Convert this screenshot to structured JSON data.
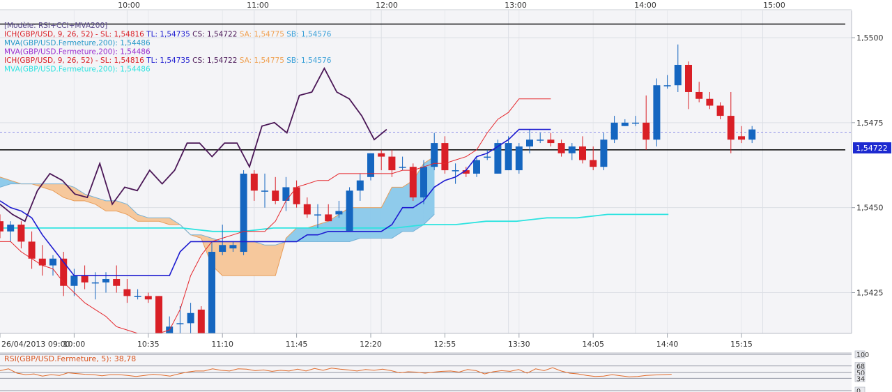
{
  "colors": {
    "panel_bg": "#f4f4f7",
    "frame": "#b9bdc6",
    "grid": "#dcdfe5",
    "bull": "#1566c0",
    "bear": "#d91f26",
    "tenkan": "#e5262b",
    "kijun": "#1d1bd0",
    "mva200": "#2de3e0",
    "cloud_bear": "#f6c89c",
    "cloud_bull": "#8fcbeb",
    "cloud_edge_a": "#e89d5a",
    "cloud_edge_b": "#75b1d6",
    "chikou": "#4a1656",
    "rsi": "#e06a2a",
    "marker": "#f2a33a"
  },
  "top_axis_labels": [
    "10:00",
    "11:00",
    "12:00",
    "13:00",
    "14:00",
    "15:00"
  ],
  "legend": [
    {
      "text": "[Modèle: RSI+CCI+MVA200]",
      "color": "#5a4a8c"
    },
    {
      "parts": [
        {
          "text": "ICH(GBP/USD, 9, 26, 52) -  SL: 1,54816  ",
          "color": "#d91f26"
        },
        {
          "text": "TL: 1,54735  ",
          "color": "#1d1bd0"
        },
        {
          "text": "CS: 1,54722  ",
          "color": "#4a1656"
        },
        {
          "text": "SA: 1,54775  ",
          "color": "#f0a050"
        },
        {
          "text": "SB: 1,54576",
          "color": "#3aa0d8"
        }
      ]
    },
    {
      "text": "MVA(GBP/USD.Fermeture,200): 1,54486",
      "color": "#2a9bc9"
    },
    {
      "text": "MVA(GBP/USD.Fermeture,200): 1,54486",
      "color": "#9a2fd0"
    },
    {
      "parts": [
        {
          "text": "ICH(GBP/USD, 9, 26, 52) -  SL: 1,54816  ",
          "color": "#d91f26"
        },
        {
          "text": "TL: 1,54735  ",
          "color": "#1d1bd0"
        },
        {
          "text": "CS: 1,54722  ",
          "color": "#4a1656"
        },
        {
          "text": "SA: 1,54775  ",
          "color": "#f0a050"
        },
        {
          "text": "SB: 1,54576",
          "color": "#3aa0d8"
        }
      ]
    },
    {
      "text": "MVA(GBP/USD.Fermeture,200): 1,54486",
      "color": "#2de3e0"
    }
  ],
  "rsi_label": "RSI(GBP/USD.Fermeture, 5): 38,78",
  "rsi_axis": [
    "100",
    "68",
    "50",
    "34",
    "0"
  ],
  "current_price_label": "1,54722",
  "chart_data": {
    "type": "candlestick",
    "pair": "GBP/USD",
    "timeframe_minutes": 5,
    "x_axis": {
      "ticks": [
        "26/04/2013 09:00",
        "10:00",
        "10:35",
        "11:10",
        "11:45",
        "12:20",
        "12:55",
        "13:30",
        "14:05",
        "14:40",
        "15:15"
      ]
    },
    "y_axis": {
      "ticks": [
        "1,5425",
        "1,5450",
        "1,5475",
        "1,5500"
      ],
      "range": [
        1.5413,
        1.5508
      ]
    },
    "candles": [
      [
        1.5446,
        1.5448,
        1.5441,
        1.5443
      ],
      [
        1.5443,
        1.5446,
        1.544,
        1.5445
      ],
      [
        1.5445,
        1.5446,
        1.5438,
        1.544
      ],
      [
        1.544,
        1.5443,
        1.5432,
        1.5435
      ],
      [
        1.5435,
        1.5439,
        1.543,
        1.5433
      ],
      [
        1.5433,
        1.5436,
        1.543,
        1.5435
      ],
      [
        1.5435,
        1.5437,
        1.5424,
        1.5427
      ],
      [
        1.5427,
        1.5432,
        1.5424,
        1.543
      ],
      [
        1.543,
        1.5433,
        1.5426,
        1.5428
      ],
      [
        1.5428,
        1.5431,
        1.5423,
        1.5428
      ],
      [
        1.5428,
        1.5431,
        1.5425,
        1.5429
      ],
      [
        1.5429,
        1.5433,
        1.5425,
        1.5427
      ],
      [
        1.5426,
        1.5429,
        1.5422,
        1.5424
      ],
      [
        1.5424,
        1.5426,
        1.5423,
        1.5424
      ],
      [
        1.5424,
        1.5425,
        1.5422,
        1.5423
      ],
      [
        1.5424,
        1.5424,
        1.5412,
        1.5413
      ],
      [
        1.5413,
        1.5418,
        1.5411,
        1.5415
      ],
      [
        1.5416,
        1.5421,
        1.5413,
        1.5416
      ],
      [
        1.5416,
        1.5422,
        1.5413,
        1.5419
      ],
      [
        1.542,
        1.5421,
        1.5411,
        1.5413
      ],
      [
        1.5413,
        1.544,
        1.5411,
        1.5437
      ],
      [
        1.5437,
        1.5445,
        1.5436,
        1.5439
      ],
      [
        1.5438,
        1.544,
        1.5437,
        1.5439
      ],
      [
        1.5437,
        1.5461,
        1.5436,
        1.546
      ],
      [
        1.546,
        1.5461,
        1.5452,
        1.5455
      ],
      [
        1.5455,
        1.546,
        1.545,
        1.5455
      ],
      [
        1.5455,
        1.5459,
        1.5451,
        1.5452
      ],
      [
        1.5452,
        1.5459,
        1.5449,
        1.5456
      ],
      [
        1.5456,
        1.5458,
        1.545,
        1.5451
      ],
      [
        1.5451,
        1.5453,
        1.5447,
        1.5448
      ],
      [
        1.5448,
        1.5451,
        1.5444,
        1.5448
      ],
      [
        1.5448,
        1.5451,
        1.5446,
        1.5446
      ],
      [
        1.5448,
        1.5452,
        1.5447,
        1.5449
      ],
      [
        1.5443,
        1.5456,
        1.5443,
        1.5455
      ],
      [
        1.5455,
        1.546,
        1.5452,
        1.5458
      ],
      [
        1.5459,
        1.5466,
        1.5458,
        1.5466
      ],
      [
        1.5466,
        1.5467,
        1.5461,
        1.5465
      ],
      [
        1.5465,
        1.5467,
        1.5459,
        1.5461
      ],
      [
        1.5462,
        1.5465,
        1.5461,
        1.5462
      ],
      [
        1.5462,
        1.5463,
        1.5452,
        1.5453
      ],
      [
        1.5453,
        1.5464,
        1.5451,
        1.5462
      ],
      [
        1.5462,
        1.5472,
        1.5461,
        1.5469
      ],
      [
        1.5469,
        1.5471,
        1.546,
        1.5461
      ],
      [
        1.5461,
        1.5463,
        1.5457,
        1.5461
      ],
      [
        1.5461,
        1.5462,
        1.5459,
        1.546
      ],
      [
        1.546,
        1.5465,
        1.5459,
        1.5464
      ],
      [
        1.5465,
        1.5467,
        1.5464,
        1.5465
      ],
      [
        1.546,
        1.547,
        1.546,
        1.5469
      ],
      [
        1.5461,
        1.5471,
        1.5461,
        1.5469
      ],
      [
        1.5461,
        1.5469,
        1.546,
        1.5468
      ],
      [
        1.5468,
        1.5473,
        1.5466,
        1.547
      ],
      [
        1.547,
        1.5472,
        1.5469,
        1.547
      ],
      [
        1.547,
        1.5472,
        1.5468,
        1.5469
      ],
      [
        1.5469,
        1.547,
        1.5465,
        1.5466
      ],
      [
        1.5466,
        1.5469,
        1.5464,
        1.5468
      ],
      [
        1.5468,
        1.5471,
        1.5463,
        1.5464
      ],
      [
        1.5464,
        1.5468,
        1.5461,
        1.5462
      ],
      [
        1.5462,
        1.5472,
        1.5461,
        1.547
      ],
      [
        1.547,
        1.5477,
        1.5469,
        1.5475
      ],
      [
        1.5474,
        1.5476,
        1.5474,
        1.5475
      ],
      [
        1.5475,
        1.5477,
        1.5474,
        1.5475
      ],
      [
        1.5475,
        1.5483,
        1.5467,
        1.547
      ],
      [
        1.547,
        1.5488,
        1.5468,
        1.5486
      ],
      [
        1.5486,
        1.5489,
        1.5485,
        1.5486
      ],
      [
        1.5486,
        1.5498,
        1.5484,
        1.5492
      ],
      [
        1.5492,
        1.5493,
        1.5479,
        1.5484
      ],
      [
        1.5484,
        1.5487,
        1.5481,
        1.5482
      ],
      [
        1.5482,
        1.5484,
        1.5479,
        1.548
      ],
      [
        1.548,
        1.5481,
        1.5476,
        1.5477
      ],
      [
        1.5477,
        1.5484,
        1.5466,
        1.547
      ],
      [
        1.5471,
        1.5474,
        1.5469,
        1.547
      ],
      [
        1.547,
        1.5474,
        1.5469,
        1.5473
      ]
    ],
    "tenkan_sen": [
      1.544,
      1.544,
      1.5437,
      1.5435,
      1.5433,
      1.5432,
      1.5428,
      1.5425,
      1.5422,
      1.542,
      1.5418,
      1.5415,
      1.5414,
      1.5413,
      1.5413,
      1.5413,
      1.5414,
      1.542,
      1.543,
      1.5436,
      1.544,
      1.5441,
      1.5442,
      1.5443,
      1.5443,
      1.5443,
      1.5446,
      1.5452,
      1.5456,
      1.5457,
      1.5458,
      1.5458,
      1.546,
      1.546,
      1.546,
      1.546,
      1.546,
      1.546,
      1.5461,
      1.5461,
      1.5462,
      1.5463,
      1.5463,
      1.5464,
      1.5465,
      1.5467,
      1.5472,
      1.5476,
      1.5478,
      1.5482,
      1.5482,
      1.5482,
      1.5482
    ],
    "kijun_sen": [
      1.5452,
      1.545,
      1.5449,
      1.5447,
      1.5442,
      1.5438,
      1.5434,
      1.543,
      1.543,
      1.543,
      1.543,
      1.543,
      1.543,
      1.543,
      1.543,
      1.543,
      1.543,
      1.5437,
      1.544,
      1.544,
      1.544,
      1.544,
      1.544,
      1.544,
      1.544,
      1.544,
      1.544,
      1.544,
      1.544,
      1.5442,
      1.5442,
      1.5443,
      1.5443,
      1.5443,
      1.5443,
      1.5443,
      1.5443,
      1.5445,
      1.545,
      1.545,
      1.5452,
      1.5456,
      1.5458,
      1.5459,
      1.5461,
      1.5465,
      1.5466,
      1.5468,
      1.547,
      1.5473,
      1.5473,
      1.5473,
      1.5473
    ],
    "chikou_span": [
      1.5451,
      1.5448,
      1.5446,
      1.5455,
      1.546,
      1.5458,
      1.5454,
      1.5453,
      1.5463,
      1.5451,
      1.5456,
      1.5455,
      1.5461,
      1.5457,
      1.5461,
      1.5469,
      1.5469,
      1.5465,
      1.5469,
      1.5469,
      1.5462,
      1.5474,
      1.5475,
      1.5472,
      1.5483,
      1.5484,
      1.5491,
      1.5484,
      1.5482,
      1.5477,
      1.547,
      1.5473
    ],
    "mva_200": [
      1.5444,
      1.5444,
      1.5444,
      1.5444,
      1.5444,
      1.5444,
      1.5444,
      1.5443,
      1.5443,
      1.5444,
      1.5444,
      1.5444,
      1.5444,
      1.5444,
      1.5445,
      1.5445,
      1.5446,
      1.5446,
      1.5447,
      1.5447,
      1.5448,
      1.5448,
      1.5448
    ],
    "senkou_a": [
      1.5459,
      1.5458,
      1.5457,
      1.5457,
      1.5456,
      1.5455,
      1.5453,
      1.5452,
      1.5452,
      1.5451,
      1.5449,
      1.5449,
      1.5448,
      1.5446,
      1.5446,
      1.5446,
      1.5445,
      1.5445,
      1.5442,
      1.5441,
      1.5433,
      1.543,
      1.543,
      1.543,
      1.543,
      1.543,
      1.543,
      1.5441,
      1.5444,
      1.5444,
      1.5445,
      1.5446,
      1.5448,
      1.545,
      1.545,
      1.545,
      1.545,
      1.5456,
      1.5456,
      1.5458,
      1.5463,
      1.5465
    ],
    "senkou_b": [
      1.5456,
      1.5457,
      1.5457,
      1.5457,
      1.5457,
      1.5457,
      1.5457,
      1.5456,
      1.5454,
      1.5453,
      1.5452,
      1.5452,
      1.5451,
      1.5448,
      1.5447,
      1.5447,
      1.5447,
      1.5445,
      1.5442,
      1.5442,
      1.5441,
      1.544,
      1.544,
      1.544,
      1.544,
      1.5439,
      1.5439,
      1.544,
      1.544,
      1.544,
      1.544,
      1.544,
      1.544,
      1.544,
      1.5441,
      1.5441,
      1.5441,
      1.5441,
      1.5443,
      1.5443,
      1.5445,
      1.5448
    ],
    "horizontal_levels": [
      1.5504,
      1.5467
    ],
    "current_price": 1.54722,
    "rsi": {
      "name": "RSI(GBP/USD.Fermeture, 5)",
      "last": 38.78,
      "levels": [
        100,
        68,
        50,
        34,
        0
      ],
      "values": [
        55,
        60,
        48,
        44,
        46,
        40,
        44,
        42,
        49,
        47,
        45,
        44,
        41,
        44,
        44,
        42,
        39,
        42,
        45,
        43,
        40,
        46,
        51,
        54,
        54,
        60,
        56,
        54,
        60,
        59,
        55,
        57,
        53,
        56,
        54,
        59,
        54,
        61,
        56,
        62,
        59,
        57,
        54,
        58,
        56,
        59,
        55,
        49,
        52,
        51,
        48,
        51,
        53,
        54,
        51,
        58,
        55,
        46,
        52,
        55,
        53,
        58,
        48,
        60,
        55,
        63,
        54,
        48,
        46,
        42,
        39,
        40,
        44,
        41,
        38,
        39,
        42,
        43,
        44,
        45
      ]
    }
  }
}
